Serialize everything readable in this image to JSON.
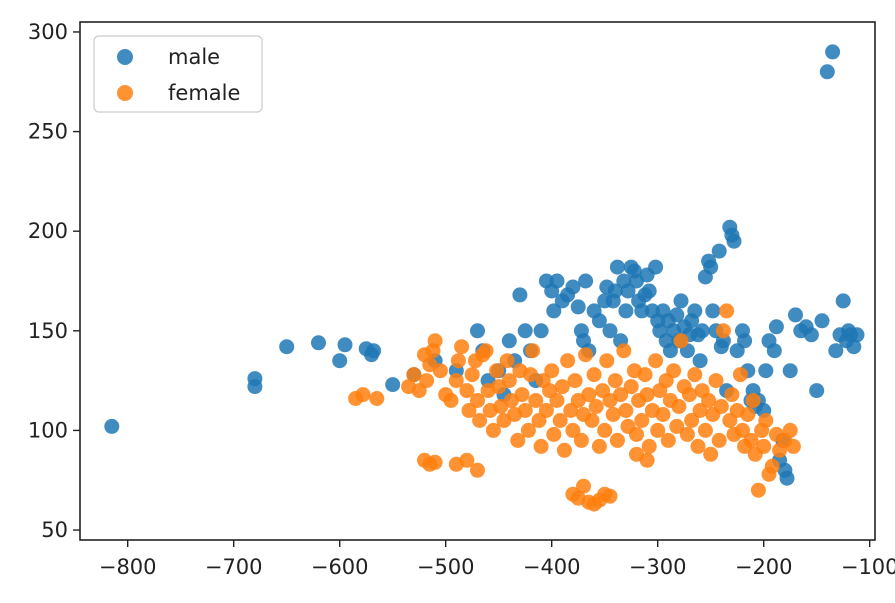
{
  "chart_data": {
    "type": "scatter",
    "title": "",
    "xlabel": "",
    "ylabel": "",
    "xlim": [
      -845,
      -95
    ],
    "ylim": [
      45,
      305
    ],
    "xticks": [
      -800,
      -700,
      -600,
      -500,
      -400,
      -300,
      -200,
      -100
    ],
    "yticks": [
      50,
      100,
      150,
      200,
      250,
      300
    ],
    "xtick_labels": [
      "−800",
      "−700",
      "−600",
      "−500",
      "−400",
      "−300",
      "−200",
      "−100"
    ],
    "ytick_labels": [
      "50",
      "100",
      "150",
      "200",
      "250",
      "300"
    ],
    "grid": false,
    "legend_position": "top-left",
    "series": [
      {
        "name": "male",
        "color": "#1f77b4",
        "points": [
          [
            -815,
            102
          ],
          [
            -680,
            126
          ],
          [
            -680,
            122
          ],
          [
            -650,
            142
          ],
          [
            -620,
            144
          ],
          [
            -600,
            135
          ],
          [
            -595,
            143
          ],
          [
            -575,
            141
          ],
          [
            -570,
            138
          ],
          [
            -568,
            140
          ],
          [
            -550,
            123
          ],
          [
            -530,
            128
          ],
          [
            -510,
            135
          ],
          [
            -490,
            130
          ],
          [
            -470,
            150
          ],
          [
            -465,
            140
          ],
          [
            -460,
            125
          ],
          [
            -450,
            130
          ],
          [
            -445,
            118
          ],
          [
            -440,
            145
          ],
          [
            -435,
            135
          ],
          [
            -430,
            168
          ],
          [
            -425,
            150
          ],
          [
            -420,
            140
          ],
          [
            -415,
            125
          ],
          [
            -410,
            150
          ],
          [
            -405,
            175
          ],
          [
            -400,
            170
          ],
          [
            -398,
            160
          ],
          [
            -395,
            175
          ],
          [
            -390,
            165
          ],
          [
            -385,
            168
          ],
          [
            -380,
            172
          ],
          [
            -375,
            162
          ],
          [
            -372,
            150
          ],
          [
            -370,
            145
          ],
          [
            -368,
            175
          ],
          [
            -365,
            140
          ],
          [
            -360,
            160
          ],
          [
            -355,
            155
          ],
          [
            -350,
            165
          ],
          [
            -348,
            172
          ],
          [
            -345,
            150
          ],
          [
            -342,
            165
          ],
          [
            -340,
            170
          ],
          [
            -338,
            182
          ],
          [
            -335,
            145
          ],
          [
            -332,
            175
          ],
          [
            -330,
            160
          ],
          [
            -328,
            170
          ],
          [
            -325,
            182
          ],
          [
            -322,
            180
          ],
          [
            -320,
            175
          ],
          [
            -318,
            165
          ],
          [
            -315,
            160
          ],
          [
            -312,
            168
          ],
          [
            -310,
            178
          ],
          [
            -308,
            170
          ],
          [
            -305,
            160
          ],
          [
            -302,
            182
          ],
          [
            -300,
            155
          ],
          [
            -298,
            150
          ],
          [
            -295,
            160
          ],
          [
            -292,
            145
          ],
          [
            -290,
            155
          ],
          [
            -288,
            140
          ],
          [
            -285,
            150
          ],
          [
            -282,
            158
          ],
          [
            -280,
            145
          ],
          [
            -278,
            165
          ],
          [
            -275,
            152
          ],
          [
            -272,
            140
          ],
          [
            -270,
            148
          ],
          [
            -268,
            155
          ],
          [
            -265,
            160
          ],
          [
            -262,
            148
          ],
          [
            -260,
            135
          ],
          [
            -258,
            150
          ],
          [
            -255,
            177
          ],
          [
            -252,
            185
          ],
          [
            -250,
            182
          ],
          [
            -248,
            160
          ],
          [
            -245,
            150
          ],
          [
            -242,
            190
          ],
          [
            -240,
            142
          ],
          [
            -238,
            145
          ],
          [
            -235,
            120
          ],
          [
            -232,
            202
          ],
          [
            -230,
            198
          ],
          [
            -228,
            195
          ],
          [
            -225,
            140
          ],
          [
            -220,
            150
          ],
          [
            -218,
            145
          ],
          [
            -215,
            130
          ],
          [
            -212,
            115
          ],
          [
            -210,
            120
          ],
          [
            -208,
            112
          ],
          [
            -205,
            115
          ],
          [
            -200,
            110
          ],
          [
            -198,
            130
          ],
          [
            -195,
            145
          ],
          [
            -190,
            140
          ],
          [
            -188,
            152
          ],
          [
            -185,
            85
          ],
          [
            -182,
            95
          ],
          [
            -180,
            80
          ],
          [
            -178,
            76
          ],
          [
            -175,
            130
          ],
          [
            -170,
            158
          ],
          [
            -165,
            150
          ],
          [
            -160,
            152
          ],
          [
            -155,
            148
          ],
          [
            -150,
            120
          ],
          [
            -145,
            155
          ],
          [
            -140,
            280
          ],
          [
            -135,
            290
          ],
          [
            -132,
            140
          ],
          [
            -128,
            148
          ],
          [
            -125,
            165
          ],
          [
            -122,
            145
          ],
          [
            -120,
            150
          ],
          [
            -118,
            148
          ],
          [
            -115,
            142
          ],
          [
            -112,
            148
          ]
        ]
      },
      {
        "name": "female",
        "color": "#ff7f0e",
        "points": [
          [
            -585,
            116
          ],
          [
            -578,
            118
          ],
          [
            -565,
            116
          ],
          [
            -535,
            122
          ],
          [
            -530,
            128
          ],
          [
            -525,
            120
          ],
          [
            -520,
            138
          ],
          [
            -518,
            125
          ],
          [
            -515,
            133
          ],
          [
            -512,
            140
          ],
          [
            -510,
            145
          ],
          [
            -505,
            130
          ],
          [
            -500,
            118
          ],
          [
            -495,
            115
          ],
          [
            -490,
            125
          ],
          [
            -488,
            135
          ],
          [
            -485,
            142
          ],
          [
            -480,
            120
          ],
          [
            -478,
            110
          ],
          [
            -475,
            128
          ],
          [
            -472,
            135
          ],
          [
            -470,
            115
          ],
          [
            -468,
            105
          ],
          [
            -465,
            138
          ],
          [
            -462,
            140
          ],
          [
            -460,
            120
          ],
          [
            -458,
            110
          ],
          [
            -455,
            100
          ],
          [
            -452,
            130
          ],
          [
            -450,
            122
          ],
          [
            -448,
            112
          ],
          [
            -445,
            105
          ],
          [
            -442,
            135
          ],
          [
            -440,
            125
          ],
          [
            -438,
            115
          ],
          [
            -435,
            108
          ],
          [
            -432,
            95
          ],
          [
            -430,
            130
          ],
          [
            -428,
            118
          ],
          [
            -425,
            110
          ],
          [
            -422,
            100
          ],
          [
            -420,
            128
          ],
          [
            -418,
            140
          ],
          [
            -415,
            115
          ],
          [
            -412,
            105
          ],
          [
            -410,
            92
          ],
          [
            -408,
            125
          ],
          [
            -405,
            110
          ],
          [
            -402,
            120
          ],
          [
            -400,
            130
          ],
          [
            -398,
            98
          ],
          [
            -395,
            115
          ],
          [
            -392,
            105
          ],
          [
            -390,
            122
          ],
          [
            -388,
            90
          ],
          [
            -385,
            135
          ],
          [
            -382,
            110
          ],
          [
            -380,
            100
          ],
          [
            -378,
            125
          ],
          [
            -375,
            115
          ],
          [
            -372,
            95
          ],
          [
            -370,
            108
          ],
          [
            -368,
            138
          ],
          [
            -365,
            118
          ],
          [
            -362,
            105
          ],
          [
            -360,
            128
          ],
          [
            -358,
            112
          ],
          [
            -355,
            92
          ],
          [
            -352,
            120
          ],
          [
            -350,
            100
          ],
          [
            -348,
            135
          ],
          [
            -345,
            115
          ],
          [
            -342,
            108
          ],
          [
            -340,
            125
          ],
          [
            -338,
            95
          ],
          [
            -335,
            118
          ],
          [
            -332,
            140
          ],
          [
            -330,
            110
          ],
          [
            -328,
            102
          ],
          [
            -325,
            122
          ],
          [
            -322,
            130
          ],
          [
            -320,
            98
          ],
          [
            -318,
            115
          ],
          [
            -315,
            105
          ],
          [
            -312,
            128
          ],
          [
            -310,
            118
          ],
          [
            -308,
            92
          ],
          [
            -305,
            110
          ],
          [
            -302,
            135
          ],
          [
            -300,
            100
          ],
          [
            -298,
            120
          ],
          [
            -295,
            108
          ],
          [
            -292,
            125
          ],
          [
            -290,
            95
          ],
          [
            -288,
            115
          ],
          [
            -285,
            130
          ],
          [
            -282,
            102
          ],
          [
            -280,
            112
          ],
          [
            -278,
            145
          ],
          [
            -275,
            122
          ],
          [
            -272,
            98
          ],
          [
            -270,
            118
          ],
          [
            -268,
            105
          ],
          [
            -265,
            128
          ],
          [
            -262,
            92
          ],
          [
            -260,
            110
          ],
          [
            -258,
            120
          ],
          [
            -255,
            100
          ],
          [
            -252,
            115
          ],
          [
            -250,
            88
          ],
          [
            -248,
            108
          ],
          [
            -245,
            125
          ],
          [
            -242,
            95
          ],
          [
            -240,
            112
          ],
          [
            -238,
            150
          ],
          [
            -235,
            160
          ],
          [
            -232,
            105
          ],
          [
            -230,
            118
          ],
          [
            -228,
            98
          ],
          [
            -225,
            110
          ],
          [
            -222,
            128
          ],
          [
            -220,
            100
          ],
          [
            -218,
            92
          ],
          [
            -215,
            108
          ],
          [
            -212,
            95
          ],
          [
            -210,
            115
          ],
          [
            -208,
            88
          ],
          [
            -205,
            70
          ],
          [
            -202,
            100
          ],
          [
            -200,
            92
          ],
          [
            -198,
            105
          ],
          [
            -195,
            78
          ],
          [
            -192,
            82
          ],
          [
            -188,
            98
          ],
          [
            -185,
            90
          ],
          [
            -180,
            95
          ],
          [
            -175,
            100
          ],
          [
            -172,
            92
          ],
          [
            -520,
            85
          ],
          [
            -515,
            83
          ],
          [
            -510,
            84
          ],
          [
            -490,
            83
          ],
          [
            -480,
            85
          ],
          [
            -470,
            80
          ],
          [
            -380,
            68
          ],
          [
            -375,
            66
          ],
          [
            -370,
            72
          ],
          [
            -365,
            64
          ],
          [
            -360,
            63
          ],
          [
            -355,
            65
          ],
          [
            -350,
            68
          ],
          [
            -345,
            67
          ],
          [
            -320,
            88
          ],
          [
            -310,
            85
          ]
        ]
      }
    ]
  }
}
